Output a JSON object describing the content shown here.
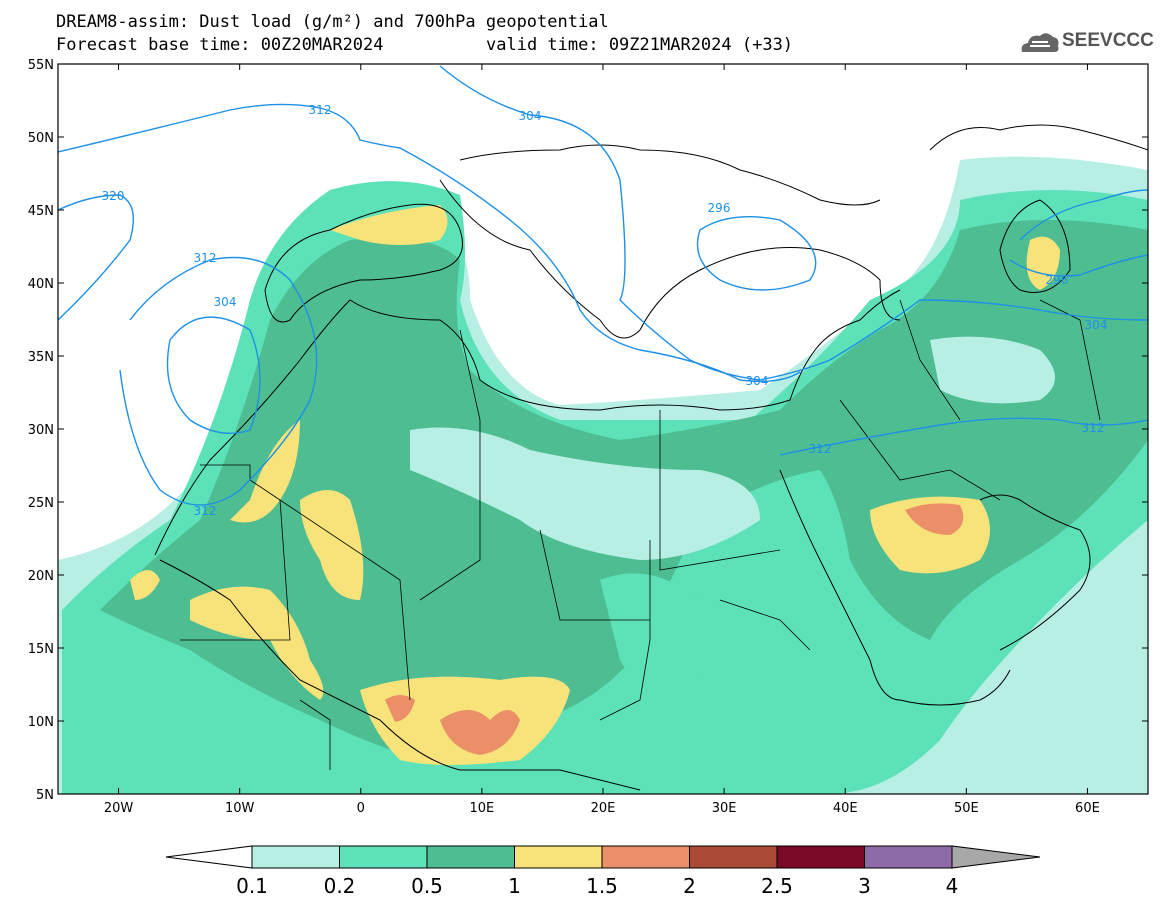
{
  "header": {
    "title_line1": "DREAM8-assim: Dust load (g/m²) and 700hPa geopotential",
    "title_line2": "Forecast base time: 00Z20MAR2024",
    "valid_time": "valid time: 09Z21MAR2024 (+33)"
  },
  "logo": {
    "text": "SEEVCCC",
    "icon": "cloud-logo-icon"
  },
  "map": {
    "lon_range": [
      -25,
      65
    ],
    "lat_range": [
      5,
      55
    ],
    "lat_ticks": [
      "55N",
      "50N",
      "45N",
      "40N",
      "35N",
      "30N",
      "25N",
      "20N",
      "15N",
      "10N",
      "5N"
    ],
    "lon_ticks": [
      "20W",
      "10W",
      "0",
      "10E",
      "20E",
      "30E",
      "40E",
      "50E",
      "60E"
    ],
    "contour_labels": [
      "312",
      "304",
      "320",
      "312",
      "304",
      "312",
      "304",
      "312",
      "296",
      "296",
      "304",
      "312"
    ]
  },
  "colorbar": {
    "labels": [
      "0.1",
      "0.2",
      "0.5",
      "1",
      "1.5",
      "2",
      "2.5",
      "3",
      "4"
    ],
    "colors": [
      "#ffffff",
      "#b8efe5",
      "#5ce1b8",
      "#4ebd92",
      "#f7e37a",
      "#eb8f68",
      "#a94a36",
      "#7a0a26",
      "#8e6aa8",
      "#a8a8a8"
    ]
  }
}
